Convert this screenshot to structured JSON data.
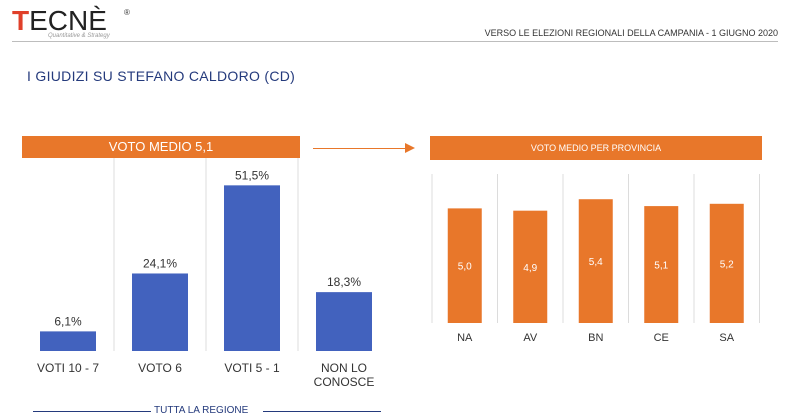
{
  "header": {
    "logo_text": "ECNÈ",
    "logo_first": "T",
    "logo_reg": "®",
    "logo_tagline": "Quantitative & Strategy",
    "subtitle": "VERSO LE ELEZIONI REGIONALI DELLA CAMPANIA - 1 GIUGNO 2020"
  },
  "page_title": "I GIUDIZI SU STEFANO CALDORO (CD)",
  "left_banner": "VOTO MEDIO 5,1",
  "right_banner": "VOTO MEDIO PER PROVINCIA",
  "footer_label": "TUTTA LA REGIONE",
  "colors": {
    "blue": "#4262be",
    "orange": "#e8772a",
    "title_blue": "#243a7c",
    "grid": "#dcdcdc"
  },
  "chart_data": [
    {
      "type": "bar",
      "categories": [
        [
          "VOTI 10 - 7"
        ],
        [
          "VOTO 6"
        ],
        [
          "VOTI 5 - 1"
        ],
        [
          "NON LO",
          "CONOSCE"
        ]
      ],
      "values": [
        6.1,
        24.1,
        51.5,
        18.3
      ],
      "labels": [
        "6,1%",
        "24,1%",
        "51,5%",
        "18,3%"
      ],
      "ylim": [
        0,
        60
      ]
    },
    {
      "type": "bar",
      "categories": [
        "NA",
        "AV",
        "BN",
        "CE",
        "SA"
      ],
      "values": [
        5.0,
        4.9,
        5.4,
        5.1,
        5.2
      ],
      "labels": [
        "5,0",
        "4,9",
        "5,4",
        "5,1",
        "5,2"
      ],
      "ylim": [
        0,
        6.5
      ]
    }
  ]
}
